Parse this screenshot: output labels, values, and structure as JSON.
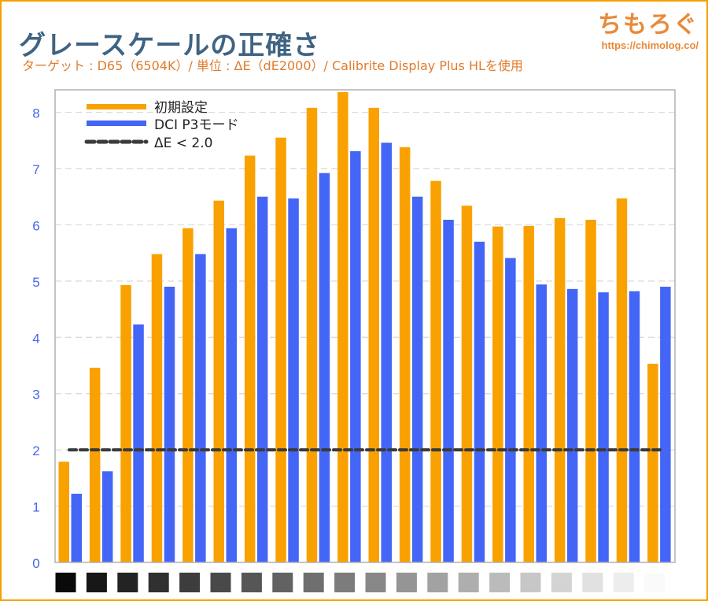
{
  "header": {
    "title": "グレースケールの正確さ",
    "subtitle": "ターゲット : D65（6504K）/ 単位 : ΔE（dE2000）/ Calibrite Display Plus HLを使用",
    "logo_text": "ちもろぐ",
    "logo_url": "https://chimolog.co/"
  },
  "colors": {
    "series1": "#f9a100",
    "series2": "#4466f6",
    "threshold": "#3a3a3a",
    "tick": "#4466ee",
    "accent": "#f5a100"
  },
  "chart_data": {
    "type": "bar",
    "title": "グレースケールの正確さ",
    "ylim": [
      0,
      8.4
    ],
    "yticks": [
      "0",
      "1",
      "2",
      "3",
      "4",
      "5",
      "6",
      "7",
      "8"
    ],
    "grid": true,
    "legend_position": "top-left",
    "categories_shown_as": "grayscale swatches (black to white)",
    "categories_count": 20,
    "series": [
      {
        "name": "初期設定",
        "values": [
          1.79,
          3.46,
          4.93,
          5.48,
          5.94,
          6.43,
          7.23,
          7.55,
          8.08,
          8.36,
          8.08,
          7.38,
          6.78,
          6.34,
          5.97,
          5.98,
          6.12,
          6.09,
          6.47,
          3.53
        ]
      },
      {
        "name": "DCI P3モード",
        "values": [
          1.22,
          1.62,
          4.23,
          4.9,
          5.48,
          5.94,
          6.5,
          6.47,
          6.92,
          7.31,
          7.46,
          6.5,
          6.09,
          5.7,
          5.41,
          4.94,
          4.86,
          4.8,
          4.82,
          4.9
        ]
      }
    ],
    "threshold": {
      "name": "ΔE < 2.0",
      "value": 2.0
    }
  }
}
